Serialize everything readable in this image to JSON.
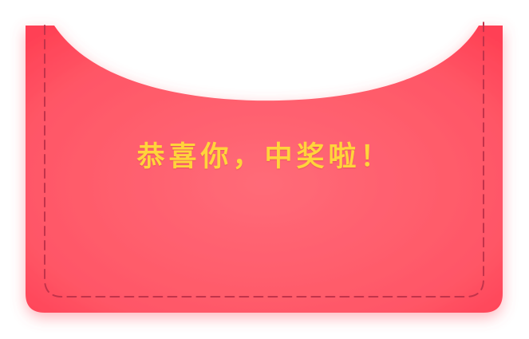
{
  "envelope": {
    "message": "恭喜你，中奖啦！"
  },
  "colors": {
    "envelope_red": "#ff4d5e",
    "envelope_red_light": "#ff6b78",
    "stitch": "#c2334a",
    "text_yellow": "#ffd43b"
  }
}
